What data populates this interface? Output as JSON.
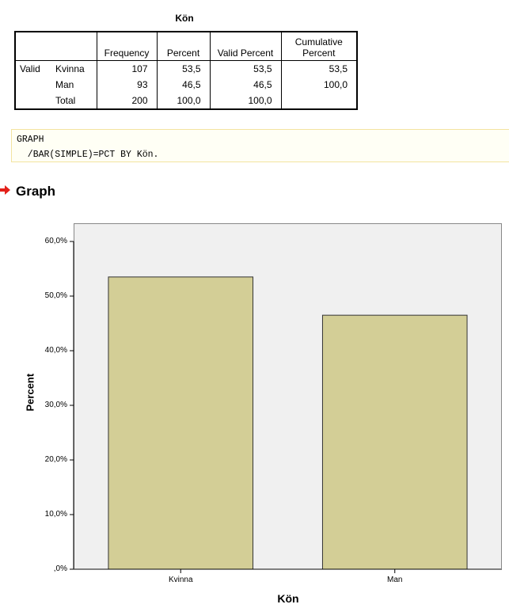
{
  "table": {
    "title": "Kön",
    "headers": [
      "Frequency",
      "Percent",
      "Valid Percent",
      "Cumulative Percent"
    ],
    "rows": [
      {
        "group": "Valid",
        "label": "Kvinna",
        "frequency": "107",
        "percent": "53,5",
        "valid_percent": "53,5",
        "cumulative_percent": "53,5"
      },
      {
        "group": "",
        "label": "Man",
        "frequency": "93",
        "percent": "46,5",
        "valid_percent": "46,5",
        "cumulative_percent": "100,0"
      },
      {
        "group": "",
        "label": "Total",
        "frequency": "200",
        "percent": "100,0",
        "valid_percent": "100,0",
        "cumulative_percent": ""
      }
    ]
  },
  "syntax": {
    "line1": "GRAPH",
    "line2": "  /BAR(SIMPLE)=PCT BY Kön."
  },
  "heading": "Graph",
  "colors": {
    "bar_fill": "#d3ce96",
    "plot_bg": "#f0f0f0",
    "syntax_border": "#f3e3a0",
    "arrow": "#e32019"
  },
  "chart_data": {
    "type": "bar",
    "categories": [
      "Kvinna",
      "Man"
    ],
    "values": [
      53.5,
      46.5
    ],
    "xlabel": "Kön",
    "ylabel": "Percent",
    "ylim": [
      0,
      60
    ],
    "yticks": [
      0,
      10,
      20,
      30,
      40,
      50,
      60
    ],
    "ytick_labels": [
      ",0%",
      "10,0%",
      "20,0%",
      "30,0%",
      "40,0%",
      "50,0%",
      "60,0%"
    ],
    "grid": false
  }
}
